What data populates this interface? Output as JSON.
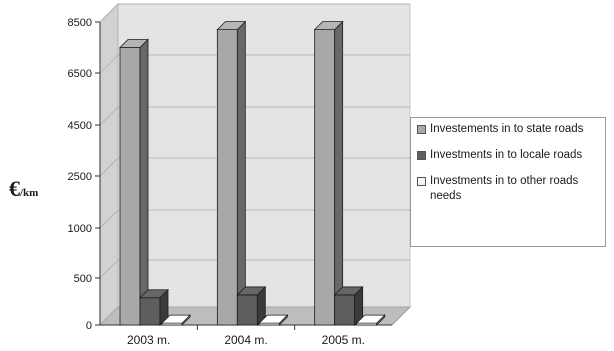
{
  "chart_data": {
    "type": "bar",
    "style": "3d-clustered-column",
    "title": "",
    "xlabel": "",
    "ylabel": {
      "symbol": "€",
      "unit": "/km"
    },
    "categories": [
      "2003 m.",
      "2004 m.",
      "2005 m."
    ],
    "y_ticks": [
      "0",
      "500",
      "1000",
      "2500",
      "4500",
      "6500",
      "8500"
    ],
    "ylim": [
      0,
      8500
    ],
    "grid": true,
    "legend_position": "right",
    "series": [
      {
        "name": "Investements in to state roads",
        "values": [
          7500,
          8200,
          8200
        ],
        "color": "#a8a8a8"
      },
      {
        "name": "Investments in to locale roads",
        "values": [
          290,
          320,
          320
        ],
        "color": "#5e5e5e"
      },
      {
        "name": "Investments in to other roads needs",
        "values": [
          20,
          20,
          20
        ],
        "color": "#f4f4f4"
      }
    ]
  }
}
